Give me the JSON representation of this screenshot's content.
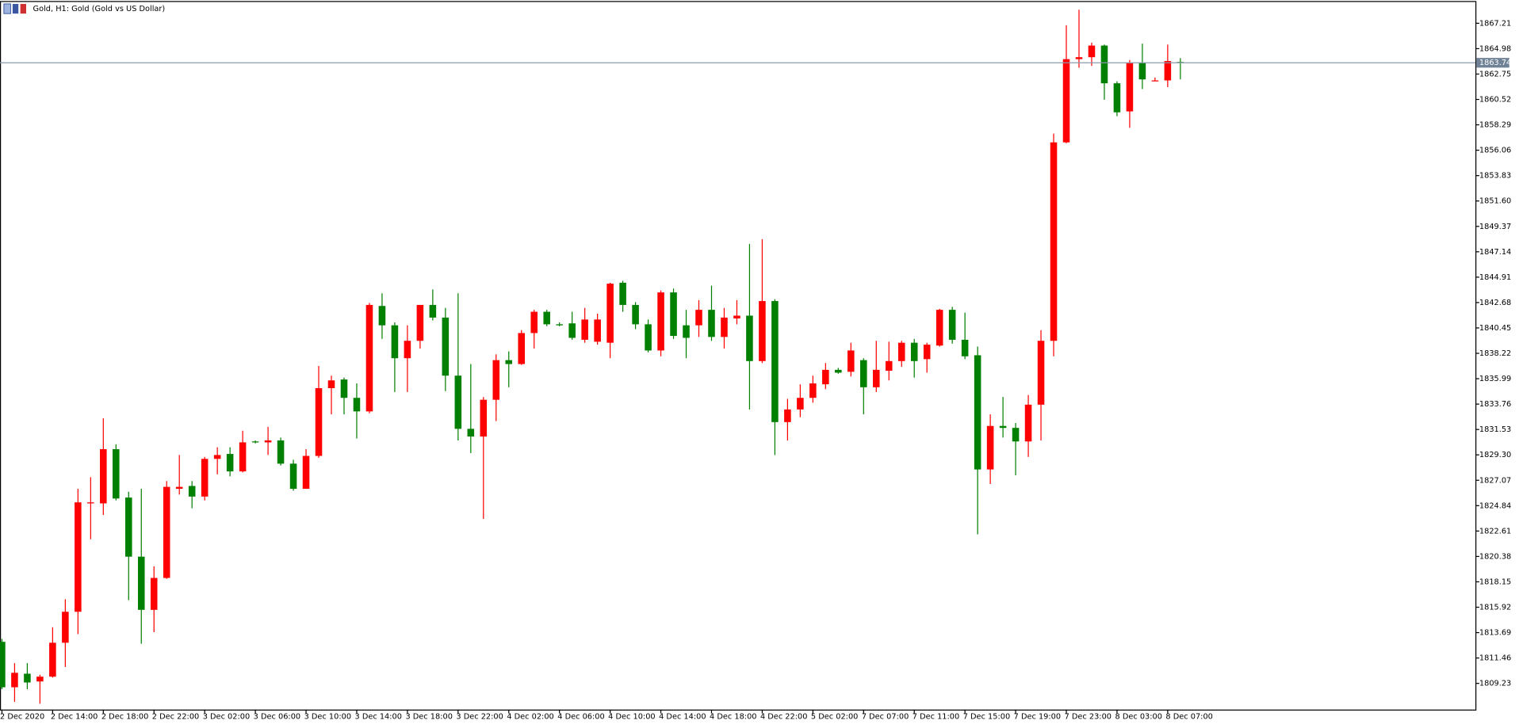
{
  "chart_data": {
    "type": "candlestick",
    "title": "Gold, H1:  Gold (Gold vs US Dollar)",
    "up_color": "#ff0000",
    "down_color": "#008000",
    "current_price": 1863.74,
    "ylim": [
      1806.93,
      1869.08
    ],
    "yticks": [
      1867.21,
      1864.98,
      1862.75,
      1860.52,
      1858.29,
      1856.06,
      1853.83,
      {
        "value": 1851.6,
        "label": "1851.60"
      },
      1849.37,
      1847.14,
      1844.91,
      1842.68,
      1840.45,
      1838.22,
      1835.99,
      1833.76,
      1831.53,
      {
        "value": 1829.3,
        "label": "1829.30"
      },
      1827.07,
      1824.84,
      1822.61,
      1820.38,
      1818.15,
      1815.92,
      1813.69,
      1811.46,
      1809.23
    ],
    "categories": [
      "2 Dec 2020",
      null,
      null,
      null,
      "2 Dec 14:00",
      null,
      null,
      null,
      "2 Dec 18:00",
      null,
      null,
      null,
      "2 Dec 22:00",
      null,
      null,
      null,
      "3 Dec 02:00",
      null,
      null,
      null,
      "3 Dec 06:00",
      null,
      null,
      null,
      "3 Dec 10:00",
      null,
      null,
      null,
      "3 Dec 14:00",
      null,
      null,
      null,
      "3 Dec 18:00",
      null,
      null,
      null,
      "3 Dec 22:00",
      null,
      null,
      null,
      "4 Dec 02:00",
      null,
      null,
      null,
      "4 Dec 06:00",
      null,
      null,
      null,
      "4 Dec 10:00",
      null,
      null,
      null,
      "4 Dec 14:00",
      null,
      null,
      null,
      "4 Dec 18:00",
      null,
      null,
      null,
      "4 Dec 22:00",
      null,
      null,
      null,
      "5 Dec 02:00",
      null,
      null,
      null,
      "7 Dec 07:00",
      null,
      null,
      null,
      "7 Dec 11:00",
      null,
      null,
      null,
      "7 Dec 15:00",
      null,
      null,
      null,
      "7 Dec 19:00",
      null,
      null,
      null,
      "7 Dec 23:00",
      null,
      null,
      null,
      "8 Dec 03:00",
      null,
      null,
      null,
      "8 Dec 07:00",
      null
    ],
    "open": [
      1812.88,
      1808.89,
      1810.08,
      1809.4,
      1809.82,
      1812.8,
      1815.52,
      1825.04,
      1825.04,
      1829.8,
      1825.55,
      1820.36,
      1815.69,
      1818.49,
      1826.32,
      1826.57,
      1825.64,
      1828.95,
      1829.38,
      1827.85,
      1830.48,
      1830.4,
      1830.57,
      1828.53,
      1826.32,
      1829.21,
      1835.16,
      1835.92,
      1834.31,
      1833.12,
      1842.38,
      1840.68,
      1837.79,
      1839.32,
      1842.47,
      1841.36,
      1836.26,
      1831.59,
      1830.91,
      1834.14,
      1837.62,
      1837.28,
      1840.0,
      1841.87,
      1840.77,
      1840.85,
      1839.41,
      1839.24,
      1839.15,
      1844.42,
      1842.47,
      1840.77,
      1838.47,
      1843.57,
      1840.68,
      1840.68,
      1842.04,
      1839.66,
      1841.28,
      1841.53,
      1837.54,
      1842.81,
      1832.18,
      1833.29,
      1834.31,
      1835.5,
      1836.77,
      1836.6,
      1837.62,
      1835.24,
      1836.69,
      1837.54,
      1839.15,
      1837.71,
      1838.9,
      1842.04,
      1839.41,
      1838.05,
      1828.02,
      1831.84,
      1831.67,
      1830.48,
      1833.71,
      1839.32,
      1856.75,
      1864.06,
      1864.23,
      1865.25,
      1861.94,
      1859.47,
      1863.72,
      1862.19,
      1862.19,
      1863.81
    ],
    "high": [
      1813.14,
      1811.01,
      1811.01,
      1809.99,
      1814.16,
      1816.62,
      1826.32,
      1827.34,
      1832.52,
      1830.23,
      1826.06,
      1826.32,
      1819.51,
      1827.0,
      1829.29,
      1827.0,
      1829.12,
      1829.97,
      1829.97,
      1831.42,
      1830.57,
      1831.76,
      1830.82,
      1828.87,
      1829.8,
      1837.11,
      1836.26,
      1836.09,
      1835.58,
      1842.64,
      1843.49,
      1840.94,
      1840.68,
      1842.47,
      1843.83,
      1842.21,
      1843.49,
      1837.28,
      1834.39,
      1838.13,
      1838.39,
      1840.26,
      1842.04,
      1842.04,
      1840.94,
      1841.87,
      1842.21,
      1841.7,
      1844.42,
      1844.59,
      1842.72,
      1841.19,
      1843.74,
      1843.91,
      1842.04,
      1842.89,
      1844.17,
      1842.21,
      1842.89,
      1847.83,
      1848.25,
      1842.98,
      1834.22,
      1835.5,
      1836.26,
      1837.37,
      1836.94,
      1839.15,
      1837.79,
      1839.32,
      1839.24,
      1839.32,
      1839.49,
      1839.15,
      1842.13,
      1842.3,
      1841.79,
      1838.81,
      1832.86,
      1834.39,
      1832.1,
      1834.56,
      1840.26,
      1857.52,
      1867.04,
      1868.4,
      1865.51,
      1865.34,
      1862.11,
      1863.98,
      1865.42,
      1862.45,
      1865.34,
      1864.15
    ],
    "low": [
      1808.72,
      1807.61,
      1808.72,
      1807.44,
      1809.74,
      1810.67,
      1813.56,
      1821.89,
      1824.02,
      1825.3,
      1816.54,
      1812.71,
      1813.73,
      1818.41,
      1825.81,
      1824.61,
      1825.3,
      1827.59,
      1827.42,
      1827.76,
      1830.31,
      1829.29,
      1828.36,
      1826.15,
      1826.32,
      1829.04,
      1832.86,
      1832.86,
      1830.74,
      1832.95,
      1839.49,
      1834.82,
      1834.82,
      1838.64,
      1841.11,
      1834.9,
      1830.57,
      1829.46,
      1823.68,
      1832.27,
      1835.24,
      1837.2,
      1838.64,
      1840.6,
      1840.6,
      1839.41,
      1839.15,
      1838.98,
      1837.79,
      1841.87,
      1840.34,
      1838.3,
      1837.96,
      1839.49,
      1837.79,
      1839.66,
      1839.32,
      1838.64,
      1840.77,
      1833.29,
      1837.37,
      1829.29,
      1830.57,
      1832.61,
      1833.88,
      1835.07,
      1836.43,
      1836.18,
      1832.86,
      1834.82,
      1835.84,
      1837.03,
      1836.09,
      1836.52,
      1838.81,
      1839.07,
      1837.71,
      1822.32,
      1826.74,
      1830.82,
      1827.51,
      1829.12,
      1830.57,
      1837.96,
      1856.67,
      1863.3,
      1863.47,
      1860.49,
      1859.05,
      1858.03,
      1861.43,
      1862.11,
      1861.6,
      1862.28
    ],
    "close": [
      1808.89,
      1810.16,
      1809.31,
      1809.82,
      1812.8,
      1815.52,
      1825.13,
      1825.13,
      1829.8,
      1825.47,
      1820.36,
      1815.69,
      1818.49,
      1826.49,
      1826.49,
      1825.64,
      1828.95,
      1829.29,
      1827.85,
      1830.4,
      1830.4,
      1830.57,
      1828.53,
      1826.32,
      1829.21,
      1835.16,
      1835.84,
      1834.31,
      1833.12,
      1842.47,
      1840.68,
      1837.79,
      1839.32,
      1842.47,
      1841.36,
      1836.26,
      1831.59,
      1830.91,
      1834.14,
      1837.62,
      1837.28,
      1840.0,
      1841.87,
      1840.77,
      1840.68,
      1839.58,
      1841.19,
      1841.19,
      1844.34,
      1842.47,
      1840.77,
      1838.47,
      1843.57,
      1839.75,
      1839.58,
      1842.04,
      1839.66,
      1841.36,
      1841.53,
      1837.54,
      1842.81,
      1832.18,
      1833.29,
      1834.31,
      1835.58,
      1836.77,
      1836.52,
      1838.47,
      1835.24,
      1836.77,
      1837.54,
      1839.15,
      1837.54,
      1838.98,
      1842.04,
      1839.41,
      1837.96,
      1828.02,
      1831.84,
      1831.67,
      1830.48,
      1833.71,
      1839.32,
      1856.75,
      1864.06,
      1864.23,
      1865.25,
      1861.94,
      1859.39,
      1863.72,
      1862.28,
      1862.19,
      1863.89,
      1863.74
    ]
  }
}
